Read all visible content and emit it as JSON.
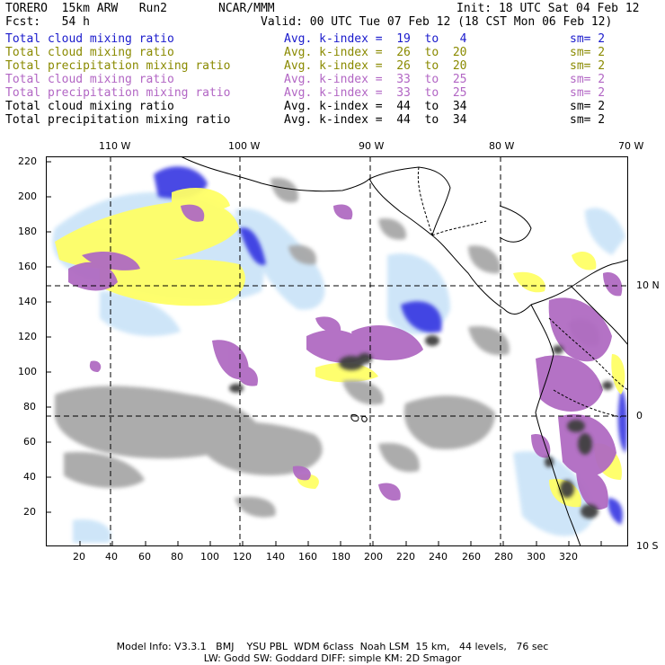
{
  "header": {
    "model": "TORERO  15km ARW   Run2",
    "org": "NCAR/MMM",
    "init": "Init: 18 UTC Sat 04 Feb 12",
    "fcst": "Fcst:   54 h",
    "valid": "Valid: 00 UTC Tue 07 Feb 12 (18 CST Mon 06 Feb 12)"
  },
  "legend": [
    {
      "name": "Total cloud mixing ratio",
      "kidx": "Avg. k-index =  19  to   4",
      "sm": "sm= 2",
      "color": "#1a1acc"
    },
    {
      "name": "Total cloud mixing ratio",
      "kidx": "Avg. k-index =  26  to  20",
      "sm": "sm= 2",
      "color": "#8a8a00"
    },
    {
      "name": "Total precipitation mixing ratio",
      "kidx": "Avg. k-index =  26  to  20",
      "sm": "sm= 2",
      "color": "#8a8a00"
    },
    {
      "name": "Total cloud mixing ratio",
      "kidx": "Avg. k-index =  33  to  25",
      "sm": "sm= 2",
      "color": "#b266c4"
    },
    {
      "name": "Total precipitation mixing ratio",
      "kidx": "Avg. k-index =  33  to  25",
      "sm": "sm= 2",
      "color": "#b266c4"
    },
    {
      "name": "Total cloud mixing ratio",
      "kidx": "Avg. k-index =  44  to  34",
      "sm": "sm= 2",
      "color": "#000000"
    },
    {
      "name": "Total precipitation mixing ratio",
      "kidx": "Avg. k-index =  44  to  34",
      "sm": "sm= 2",
      "color": "#000000"
    }
  ],
  "axes": {
    "x_ticks": [
      "20",
      "40",
      "60",
      "80",
      "100",
      "120",
      "140",
      "160",
      "180",
      "200",
      "220",
      "240",
      "260",
      "280",
      "300",
      "320"
    ],
    "y_ticks": [
      "20",
      "40",
      "60",
      "80",
      "100",
      "120",
      "140",
      "160",
      "180",
      "200",
      "220"
    ],
    "lon_labels": [
      "110 W",
      "100 W",
      "90 W",
      "80 W",
      "70 W"
    ],
    "lat_labels": [
      "10 N",
      "0",
      "10 S"
    ]
  },
  "footer": {
    "line1": "Model Info: V3.3.1   BMJ    YSU PBL  WDM 6class  Noah LSM  15 km,   44 levels,   76 sec",
    "line2": "LW: Godd SW: Goddard DIFF: simple KM: 2D Smagor"
  }
}
